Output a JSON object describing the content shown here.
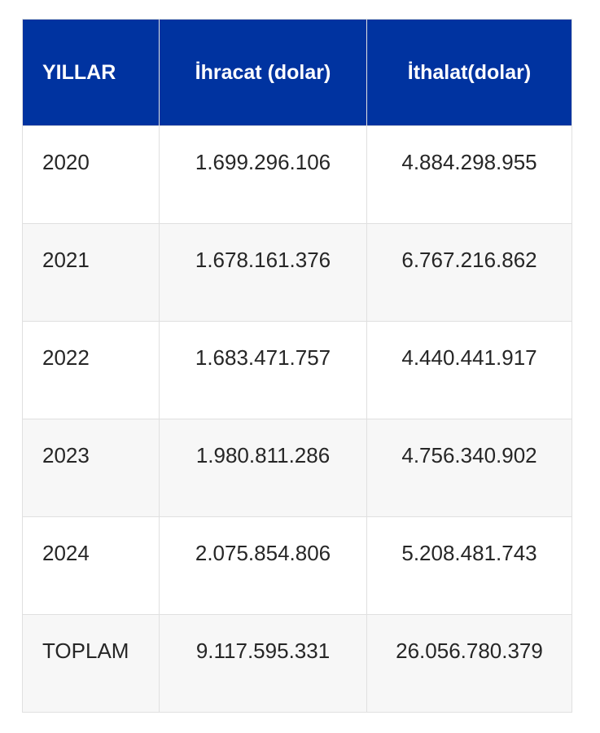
{
  "table": {
    "headers": [
      "YILLAR",
      "İhracat (dolar)",
      "İthalat(dolar)"
    ],
    "rows": [
      {
        "year": "2020",
        "export": "1.699.296.106",
        "import": "4.884.298.955"
      },
      {
        "year": "2021",
        "export": "1.678.161.376",
        "import": "6.767.216.862"
      },
      {
        "year": "2022",
        "export": "1.683.471.757",
        "import": "4.440.441.917"
      },
      {
        "year": "2023",
        "export": "1.980.811.286",
        "import": "4.756.340.902"
      },
      {
        "year": "2024",
        "export": "2.075.854.806",
        "import": "5.208.481.743"
      },
      {
        "year": "TOPLAM",
        "export": "9.117.595.331",
        "import": "26.056.780.379"
      }
    ],
    "colors": {
      "header_bg": "#0033a0",
      "header_text": "#ffffff",
      "stripe_bg": "#f7f7f7",
      "border": "#e0e0e0"
    }
  }
}
